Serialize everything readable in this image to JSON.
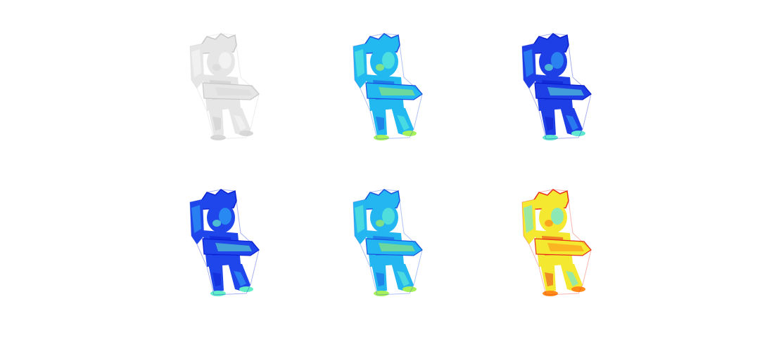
{
  "figure": {
    "panels": [
      {
        "shading": "gray",
        "base": "#e6e6e6",
        "accent": "#c9c9c9",
        "highlight": "#f7f7f7",
        "hot": "#d8d8d8"
      },
      {
        "shading": "heatmap-cyan",
        "base": "#22b8f0",
        "accent": "#1a4fe0",
        "highlight": "#5ff0d8",
        "hot": "#a6f25c"
      },
      {
        "shading": "heatmap-blue",
        "base": "#1f3fe6",
        "accent": "#0a1ccc",
        "highlight": "#2f9ff5",
        "hot": "#5fe8cf"
      },
      {
        "shading": "heatmap-blue",
        "base": "#1f46ea",
        "accent": "#0a20d4",
        "highlight": "#2ea5f5",
        "hot": "#63eec8"
      },
      {
        "shading": "heatmap-cyan",
        "base": "#23b6f0",
        "accent": "#1a55e0",
        "highlight": "#62f0d2",
        "hot": "#a8f05a"
      },
      {
        "shading": "heatmap-hot",
        "base": "#f5e830",
        "accent": "#e8301a",
        "highlight": "#5fe8ee",
        "hot": "#ff8a1a"
      }
    ]
  }
}
